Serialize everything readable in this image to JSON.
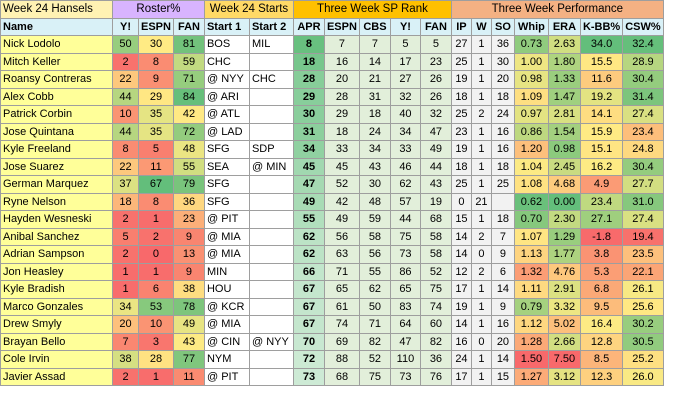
{
  "header": {
    "title": "Week 24 Hansels",
    "groups": [
      "Roster%",
      "Week 24 Starts",
      "Three Week SP Rank",
      "Three Week Performance"
    ],
    "columns": [
      "Name",
      "Y!",
      "ESPN",
      "FAN",
      "Start 1",
      "Start 2",
      "APR",
      "ESPN",
      "CBS",
      "Y!",
      "FAN",
      "IP",
      "W",
      "SO",
      "Whip",
      "ERA",
      "K-BB%",
      "CSW%"
    ]
  },
  "colors": {
    "title_bg": "#fff2b3",
    "roster_header_bg": "#d8b4ff",
    "starts_header_bg": "#ffd966",
    "rank_header_bg": "#ffc000",
    "perf_header_bg": "#f4b183",
    "column_header_bg": "#d9f1f7",
    "name_bg": "#ffff99",
    "starts_bg": "#ffffff",
    "rank_bg": "#e2efda",
    "stats_bg": "#f2f2f2"
  },
  "rows": [
    [
      "Nick Lodolo",
      "50",
      "30",
      "81",
      "BOS",
      "MIL",
      "8",
      "7",
      "7",
      "5",
      "5",
      "27",
      "1",
      "36",
      "0.73",
      "2.63",
      "34.0",
      "32.4"
    ],
    [
      "Mitch Keller",
      "2",
      "8",
      "59",
      "CHC",
      "",
      "18",
      "16",
      "14",
      "17",
      "23",
      "25",
      "1",
      "30",
      "1.00",
      "1.80",
      "15.5",
      "28.9"
    ],
    [
      "Roansy Contreras",
      "22",
      "9",
      "71",
      "@ NYY",
      "CHC",
      "28",
      "20",
      "21",
      "27",
      "26",
      "19",
      "1",
      "20",
      "0.98",
      "1.33",
      "11.6",
      "30.4"
    ],
    [
      "Alex Cobb",
      "44",
      "29",
      "84",
      "@ ARI",
      "",
      "29",
      "28",
      "31",
      "32",
      "26",
      "18",
      "1",
      "18",
      "1.09",
      "1.47",
      "19.2",
      "31.4"
    ],
    [
      "Patrick Corbin",
      "10",
      "35",
      "42",
      "@ ATL",
      "",
      "30",
      "29",
      "18",
      "40",
      "32",
      "25",
      "2",
      "24",
      "0.97",
      "2.81",
      "14.1",
      "27.4"
    ],
    [
      "Jose Quintana",
      "44",
      "35",
      "72",
      "@ LAD",
      "",
      "31",
      "18",
      "24",
      "34",
      "47",
      "23",
      "1",
      "16",
      "0.86",
      "1.54",
      "15.9",
      "23.4"
    ],
    [
      "Kyle Freeland",
      "8",
      "5",
      "48",
      "SFG",
      "SDP",
      "34",
      "33",
      "34",
      "33",
      "49",
      "19",
      "1",
      "16",
      "1.20",
      "0.98",
      "15.1",
      "24.8"
    ],
    [
      "Jose Suarez",
      "22",
      "11",
      "55",
      "SEA",
      "@ MIN",
      "45",
      "45",
      "43",
      "46",
      "44",
      "18",
      "1",
      "18",
      "1.04",
      "2.45",
      "16.2",
      "30.4"
    ],
    [
      "German Marquez",
      "37",
      "67",
      "79",
      "SFG",
      "",
      "47",
      "52",
      "30",
      "62",
      "43",
      "25",
      "1",
      "25",
      "1.08",
      "4.68",
      "4.9",
      "27.7"
    ],
    [
      "Ryne Nelson",
      "18",
      "8",
      "36",
      "SFG",
      "",
      "49",
      "42",
      "48",
      "57",
      "19",
      "0",
      "21",
      "",
      "0.62",
      "0.00",
      "23.4",
      "31.0"
    ],
    [
      "Hayden Wesneski",
      "2",
      "1",
      "23",
      "@ PIT",
      "",
      "55",
      "49",
      "59",
      "44",
      "68",
      "15",
      "1",
      "18",
      "0.70",
      "2.30",
      "27.1",
      "27.4"
    ],
    [
      "Anibal Sanchez",
      "5",
      "2",
      "9",
      "@ MIA",
      "",
      "62",
      "56",
      "58",
      "75",
      "58",
      "14",
      "2",
      "7",
      "1.07",
      "1.29",
      "-1.8",
      "19.4"
    ],
    [
      "Adrian Sampson",
      "2",
      "0",
      "13",
      "@ MIA",
      "",
      "62",
      "63",
      "56",
      "73",
      "58",
      "14",
      "0",
      "9",
      "1.13",
      "1.77",
      "3.8",
      "23.5"
    ],
    [
      "Jon Heasley",
      "1",
      "1",
      "9",
      "MIN",
      "",
      "66",
      "71",
      "55",
      "86",
      "52",
      "12",
      "2",
      "6",
      "1.32",
      "4.76",
      "5.3",
      "22.1"
    ],
    [
      "Kyle Bradish",
      "1",
      "6",
      "38",
      "HOU",
      "",
      "67",
      "65",
      "62",
      "65",
      "75",
      "17",
      "1",
      "14",
      "1.11",
      "2.91",
      "6.8",
      "26.1"
    ],
    [
      "Marco Gonzales",
      "34",
      "53",
      "78",
      "@ KCR",
      "",
      "67",
      "61",
      "50",
      "83",
      "74",
      "19",
      "1",
      "9",
      "0.79",
      "3.32",
      "9.5",
      "25.6"
    ],
    [
      "Drew Smyly",
      "20",
      "10",
      "49",
      "@ MIA",
      "",
      "67",
      "74",
      "71",
      "64",
      "60",
      "14",
      "1",
      "16",
      "1.12",
      "5.02",
      "16.4",
      "30.2"
    ],
    [
      "Brayan Bello",
      "7",
      "3",
      "43",
      "@ CIN",
      "@ NYY",
      "70",
      "69",
      "82",
      "47",
      "82",
      "16",
      "0",
      "20",
      "1.28",
      "2.66",
      "12.8",
      "30.5"
    ],
    [
      "Cole Irvin",
      "38",
      "28",
      "77",
      "NYM",
      "",
      "72",
      "88",
      "52",
      "110",
      "36",
      "24",
      "1",
      "14",
      "1.50",
      "7.50",
      "8.5",
      "25.2"
    ],
    [
      "Javier Assad",
      "2",
      "1",
      "11",
      "@ PIT",
      "",
      "73",
      "68",
      "75",
      "73",
      "76",
      "17",
      "1",
      "15",
      "1.27",
      "3.12",
      "12.3",
      "26.0"
    ]
  ]
}
